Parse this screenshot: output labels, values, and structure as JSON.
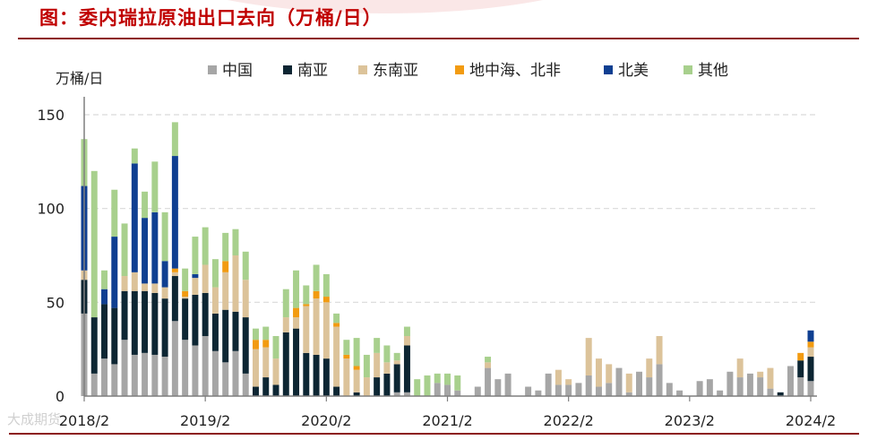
{
  "title": "图：委内瑞拉原油出口去向（万桶/日）",
  "watermark": "大成期货",
  "colors": {
    "中国": "#a6a6a6",
    "南亚": "#0d2633",
    "东南亚": "#dcc39a",
    "地中海、北非": "#f29b11",
    "北美": "#0f3f91",
    "其他": "#a8d08d"
  },
  "chart_data": {
    "type": "bar",
    "stacked": true,
    "ylabel": "万桶/日",
    "ylim": [
      0,
      150
    ],
    "yticks": [
      0,
      50,
      100,
      150
    ],
    "grid": "horizontal dashed",
    "legend_position": "top",
    "xtick_labels": [
      "2018/2",
      "2019/2",
      "2020/2",
      "2021/2",
      "2022/2",
      "2023/2",
      "2024/2"
    ],
    "categories": [
      "2018/2",
      "2018/3",
      "2018/4",
      "2018/5",
      "2018/6",
      "2018/7",
      "2018/8",
      "2018/9",
      "2018/10",
      "2018/11",
      "2018/12",
      "2019/1",
      "2019/2",
      "2019/3",
      "2019/4",
      "2019/5",
      "2019/6",
      "2019/7",
      "2019/8",
      "2019/9",
      "2019/10",
      "2019/11",
      "2019/12",
      "2020/1",
      "2020/2",
      "2020/3",
      "2020/4",
      "2020/5",
      "2020/6",
      "2020/7",
      "2020/8",
      "2020/9",
      "2020/10",
      "2020/11",
      "2020/12",
      "2021/1",
      "2021/2",
      "2021/3",
      "2021/4",
      "2021/5",
      "2021/6",
      "2021/7",
      "2021/8",
      "2021/9",
      "2021/10",
      "2021/11",
      "2021/12",
      "2022/1",
      "2022/2",
      "2022/3",
      "2022/4",
      "2022/5",
      "2022/6",
      "2022/7",
      "2022/8",
      "2022/9",
      "2022/10",
      "2022/11",
      "2022/12",
      "2023/1",
      "2023/2",
      "2023/3",
      "2023/4",
      "2023/5",
      "2023/6",
      "2023/7",
      "2023/8",
      "2023/9",
      "2023/10",
      "2023/11",
      "2023/12",
      "2024/1",
      "2024/2"
    ],
    "series": [
      {
        "name": "中国",
        "values": [
          44,
          12,
          20,
          17,
          30,
          22,
          23,
          22,
          21,
          40,
          30,
          27,
          32,
          24,
          18,
          24,
          12,
          0,
          0,
          0,
          0,
          0,
          0,
          0,
          0,
          0,
          0,
          0,
          0,
          0,
          0,
          2,
          2,
          0,
          0,
          7,
          6,
          3,
          0,
          5,
          15,
          9,
          12,
          0,
          5,
          3,
          12,
          6,
          6,
          7,
          11,
          5,
          7,
          15,
          2,
          13,
          10,
          17,
          7,
          3,
          0,
          8,
          9,
          3,
          13,
          10,
          12,
          10,
          4,
          0,
          16,
          10,
          8
        ]
      },
      {
        "name": "南亚",
        "values": [
          18,
          30,
          29,
          30,
          26,
          34,
          33,
          33,
          31,
          24,
          22,
          27,
          23,
          20,
          28,
          21,
          30,
          5,
          10,
          6,
          34,
          36,
          23,
          22,
          20,
          5,
          0,
          2,
          0,
          10,
          12,
          15,
          25,
          0,
          0,
          0,
          0,
          0,
          0,
          0,
          0,
          0,
          0,
          0,
          0,
          0,
          0,
          0,
          0,
          0,
          0,
          0,
          0,
          0,
          0,
          0,
          0,
          0,
          0,
          0,
          0,
          0,
          0,
          0,
          0,
          0,
          0,
          0,
          0,
          2,
          0,
          9,
          13
        ]
      },
      {
        "name": "东南亚",
        "values": [
          5,
          0,
          0,
          0,
          8,
          10,
          4,
          5,
          6,
          2,
          1,
          9,
          15,
          14,
          20,
          30,
          20,
          20,
          16,
          14,
          8,
          6,
          25,
          30,
          30,
          32,
          20,
          12,
          10,
          13,
          6,
          2,
          5,
          0,
          0,
          0,
          0,
          0,
          0,
          0,
          3,
          0,
          0,
          0,
          0,
          0,
          0,
          8,
          3,
          0,
          20,
          15,
          10,
          0,
          10,
          0,
          10,
          15,
          0,
          0,
          0,
          0,
          0,
          0,
          0,
          10,
          0,
          3,
          11,
          0,
          0,
          0,
          5
        ]
      },
      {
        "name": "地中海、北非",
        "values": [
          0,
          0,
          0,
          0,
          0,
          0,
          0,
          0,
          0,
          2,
          3,
          0,
          0,
          0,
          6,
          0,
          0,
          5,
          4,
          0,
          0,
          5,
          1,
          4,
          3,
          2,
          2,
          2,
          0,
          0,
          0,
          0,
          0,
          0,
          0,
          0,
          0,
          0,
          0,
          0,
          0,
          0,
          0,
          0,
          0,
          0,
          0,
          0,
          0,
          0,
          0,
          0,
          0,
          0,
          0,
          0,
          0,
          0,
          0,
          0,
          0,
          0,
          0,
          0,
          0,
          0,
          0,
          0,
          0,
          0,
          0,
          4,
          3
        ]
      },
      {
        "name": "北美",
        "values": [
          45,
          0,
          8,
          38,
          0,
          58,
          35,
          38,
          14,
          60,
          0,
          2,
          0,
          0,
          0,
          0,
          0,
          0,
          0,
          0,
          0,
          0,
          0,
          0,
          0,
          0,
          0,
          0,
          0,
          0,
          0,
          0,
          0,
          0,
          0,
          0,
          0,
          0,
          0,
          0,
          0,
          0,
          0,
          0,
          0,
          0,
          0,
          0,
          0,
          0,
          0,
          0,
          0,
          0,
          0,
          0,
          0,
          0,
          0,
          0,
          0,
          0,
          0,
          0,
          0,
          0,
          0,
          0,
          0,
          0,
          0,
          0,
          6
        ]
      },
      {
        "name": "其他",
        "values": [
          25,
          78,
          10,
          25,
          28,
          8,
          14,
          27,
          26,
          18,
          12,
          20,
          20,
          15,
          15,
          14,
          15,
          6,
          7,
          12,
          15,
          20,
          10,
          14,
          12,
          5,
          8,
          15,
          12,
          8,
          9,
          4,
          5,
          9,
          11,
          5,
          6,
          8,
          0,
          0,
          3,
          0,
          0,
          0,
          0,
          0,
          0,
          0,
          0,
          0,
          0,
          0,
          0,
          0,
          0,
          0,
          0,
          0,
          0,
          0,
          0,
          0,
          0,
          0,
          0,
          0,
          0,
          0,
          0,
          0,
          0,
          0,
          0
        ]
      }
    ]
  }
}
